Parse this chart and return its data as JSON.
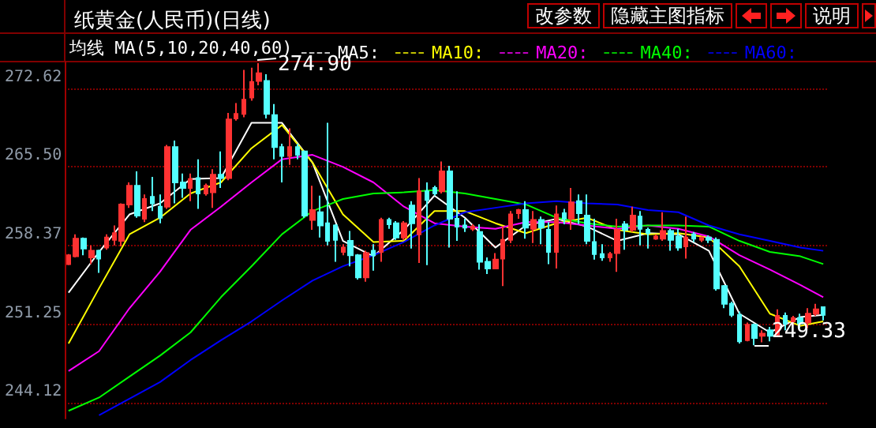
{
  "chart_data": {
    "type": "candlestick",
    "title": "纸黄金(人民币)(日线)",
    "legend_title": "均线 MA(5,10,20,40,60)",
    "annotations": [
      "改参数",
      "隐藏主图指标",
      "说明",
      "274.90",
      "249.33"
    ],
    "categories": [
      null,
      null,
      null,
      null,
      null,
      null,
      null,
      null,
      null,
      null,
      null,
      null,
      null,
      null,
      null,
      null,
      null,
      null,
      null,
      null,
      null,
      null,
      null,
      null,
      null,
      null,
      null,
      null,
      null,
      null,
      null,
      null,
      null,
      null,
      null,
      null,
      null,
      null,
      null,
      null,
      null,
      null,
      null,
      null,
      null,
      null,
      null,
      null,
      null,
      null,
      null,
      null,
      null,
      null,
      null,
      null,
      null,
      null,
      null,
      null,
      null,
      null,
      null,
      null,
      null,
      null,
      null,
      null,
      null,
      null,
      null,
      null,
      null,
      null,
      null,
      null,
      null,
      null,
      null,
      null,
      null,
      null,
      null,
      null,
      null,
      null,
      null,
      null,
      null,
      null,
      null,
      null,
      null,
      null,
      null,
      null,
      null,
      null,
      null,
      null
    ],
    "ohlc": [
      [
        256.7,
        257.6,
        256.6,
        257.5
      ],
      [
        257.4,
        259.4,
        257.3,
        259.0
      ],
      [
        259.0,
        259.1,
        257.5,
        258.1
      ],
      [
        257.3,
        258.4,
        256.7,
        257.9
      ],
      [
        257.9,
        258.0,
        255.9,
        257.2
      ],
      [
        258.2,
        259.4,
        258.0,
        259.1
      ],
      [
        258.9,
        260.2,
        258.4,
        259.5
      ],
      [
        258.8,
        262.2,
        258.3,
        262.1
      ],
      [
        262.1,
        264.1,
        261.8,
        263.8
      ],
      [
        263.8,
        265.1,
        260.9,
        261.1
      ],
      [
        260.8,
        263.0,
        260.5,
        262.6
      ],
      [
        262.8,
        264.6,
        261.5,
        262.2
      ],
      [
        261.9,
        263.0,
        260.4,
        260.9
      ],
      [
        261.9,
        267.5,
        261.7,
        267.3
      ],
      [
        267.3,
        267.9,
        262.2,
        264.1
      ],
      [
        264.1,
        264.9,
        262.7,
        263.6
      ],
      [
        263.6,
        264.9,
        262.4,
        264.4
      ],
      [
        264.5,
        266.2,
        261.7,
        263.1
      ],
      [
        263.1,
        264.0,
        262.9,
        263.8
      ],
      [
        263.2,
        265.3,
        261.8,
        264.8
      ],
      [
        264.8,
        266.9,
        263.6,
        264.5
      ],
      [
        264.5,
        270.4,
        264.3,
        269.8
      ],
      [
        269.9,
        271.3,
        269.7,
        270.3
      ],
      [
        270.3,
        274.3,
        270.0,
        271.6
      ],
      [
        271.8,
        274.5,
        271.5,
        273.2
      ],
      [
        273.3,
        274.9,
        272.9,
        274.0
      ],
      [
        273.3,
        273.9,
        269.9,
        270.3
      ],
      [
        270.2,
        271.2,
        266.2,
        267.3
      ],
      [
        267.3,
        267.6,
        264.1,
        266.5
      ],
      [
        266.5,
        269.0,
        265.7,
        267.3
      ],
      [
        267.3,
        267.6,
        266.2,
        266.6
      ],
      [
        266.9,
        267.0,
        260.9,
        261.1
      ],
      [
        260.7,
        263.8,
        259.8,
        261.6
      ],
      [
        261.4,
        262.9,
        259.1,
        260.2
      ],
      [
        260.4,
        269.5,
        258.4,
        258.8
      ],
      [
        260.2,
        260.3,
        256.9,
        258.9
      ],
      [
        257.8,
        258.5,
        257.5,
        258.2
      ],
      [
        258.8,
        259.7,
        256.5,
        257.5
      ],
      [
        257.5,
        257.6,
        255.3,
        255.5
      ],
      [
        255.5,
        257.9,
        255.1,
        257.7
      ],
      [
        257.9,
        258.5,
        256.1,
        257.5
      ],
      [
        257.8,
        260.9,
        256.9,
        260.7
      ],
      [
        260.7,
        260.9,
        259.9,
        260.3
      ],
      [
        260.4,
        260.6,
        258.9,
        259.1
      ],
      [
        259.1,
        260.6,
        258.9,
        260.4
      ],
      [
        262.0,
        262.4,
        258.1,
        260.4
      ],
      [
        259.4,
        264.5,
        256.8,
        263.3
      ],
      [
        263.3,
        264.1,
        256.6,
        262.5
      ],
      [
        263.6,
        263.8,
        262.9,
        263.1
      ],
      [
        263.3,
        266.0,
        263.1,
        265.1
      ],
      [
        265.1,
        265.6,
        258.2,
        260.8
      ],
      [
        260.8,
        263.3,
        258.8,
        260.1
      ],
      [
        260.2,
        260.8,
        259.6,
        260.0
      ],
      [
        259.9,
        260.3,
        259.7,
        260.1
      ],
      [
        259.6,
        260.3,
        256.2,
        256.9
      ],
      [
        256.9,
        257.3,
        255.8,
        256.3
      ],
      [
        256.3,
        257.7,
        256.3,
        257.1
      ],
      [
        257.2,
        260.1,
        254.7,
        258.9
      ],
      [
        258.9,
        261.5,
        258.6,
        261.2
      ],
      [
        261.3,
        261.7,
        260.8,
        261.6
      ],
      [
        261.6,
        262.4,
        259.0,
        260.0
      ],
      [
        259.9,
        261.5,
        258.6,
        260.7
      ],
      [
        260.7,
        261.0,
        258.5,
        260.0
      ],
      [
        259.8,
        260.5,
        256.7,
        257.8
      ],
      [
        257.8,
        262.0,
        256.3,
        261.2
      ],
      [
        261.3,
        261.7,
        260.3,
        260.8
      ],
      [
        260.8,
        263.6,
        259.8,
        262.3
      ],
      [
        262.4,
        263.0,
        260.3,
        261.3
      ],
      [
        261.1,
        263.0,
        258.5,
        258.8
      ],
      [
        258.7,
        260.8,
        257.1,
        257.6
      ],
      [
        257.6,
        258.5,
        257.0,
        257.3
      ],
      [
        257.3,
        257.8,
        256.9,
        257.6
      ],
      [
        257.7,
        260.8,
        256.0,
        259.8
      ],
      [
        260.3,
        260.6,
        258.0,
        259.8
      ],
      [
        259.8,
        261.9,
        259.6,
        261.1
      ],
      [
        261.0,
        261.5,
        258.4,
        259.9
      ],
      [
        259.8,
        260.0,
        258.1,
        259.5
      ],
      [
        259.0,
        259.4,
        258.9,
        259.2
      ],
      [
        259.0,
        261.4,
        258.8,
        259.7
      ],
      [
        259.7,
        259.9,
        257.9,
        258.9
      ],
      [
        259.2,
        259.9,
        257.9,
        258.2
      ],
      [
        258.3,
        261.0,
        257.2,
        259.1
      ],
      [
        259.4,
        259.6,
        258.7,
        259.0
      ],
      [
        258.9,
        259.2,
        258.7,
        259.1
      ],
      [
        259.1,
        259.3,
        258.6,
        258.9
      ],
      [
        258.9,
        259.1,
        254.3,
        254.5
      ],
      [
        254.7,
        254.8,
        252.7,
        253.1
      ],
      [
        253.1,
        253.3,
        251.9,
        252.1
      ],
      [
        252.1,
        252.4,
        249.5,
        249.7
      ],
      [
        249.8,
        251.4,
        249.7,
        251.2
      ],
      [
        251.2,
        251.3,
        249.33,
        250.0
      ],
      [
        250.2,
        250.7,
        249.6,
        250.4
      ],
      [
        250.7,
        251.0,
        249.7,
        250.2
      ],
      [
        250.3,
        252.6,
        250.1,
        252.0
      ],
      [
        252.0,
        252.3,
        250.7,
        251.3
      ],
      [
        251.5,
        252.0,
        251.3,
        251.8
      ],
      [
        251.8,
        252.2,
        250.9,
        251.3
      ],
      [
        251.4,
        252.7,
        250.9,
        252.2
      ],
      [
        252.2,
        253.1,
        252.0,
        252.6
      ],
      [
        252.8,
        252.8,
        251.6,
        252.1
      ]
    ],
    "colors": [
      "#ff3232",
      "#ff3232",
      "#54ffff",
      "#ff3232",
      "#54ffff",
      "#ff3232",
      "#ff3232",
      "#ff3232",
      "#ff3232",
      "#54ffff",
      "#ff3232",
      "#54ffff",
      "#54ffff",
      "#ff3232",
      "#54ffff",
      "#54ffff",
      "#ff3232",
      "#54ffff",
      "#ff3232",
      "#ff3232",
      "#54ffff",
      "#ff3232",
      "#ff3232",
      "#ff3232",
      "#ff3232",
      "#ff3232",
      "#54ffff",
      "#54ffff",
      "#54ffff",
      "#ff3232",
      "#54ffff",
      "#54ffff",
      "#ff3232",
      "#54ffff",
      "#54ffff",
      "#54ffff",
      "#ff3232",
      "#54ffff",
      "#54ffff",
      "#ff3232",
      "#54ffff",
      "#ff3232",
      "#54ffff",
      "#54ffff",
      "#ff3232",
      "#54ffff",
      "#ff3232",
      "#54ffff",
      "#54ffff",
      "#ff3232",
      "#54ffff",
      "#54ffff",
      "#54ffff",
      "#ff3232",
      "#54ffff",
      "#54ffff",
      "#ff3232",
      "#ff3232",
      "#ff3232",
      "#ff3232",
      "#54ffff",
      "#ff3232",
      "#54ffff",
      "#54ffff",
      "#ff3232",
      "#54ffff",
      "#ff3232",
      "#54ffff",
      "#54ffff",
      "#54ffff",
      "#54ffff",
      "#ff3232",
      "#ff3232",
      "#54ffff",
      "#ff3232",
      "#54ffff",
      "#54ffff",
      "#ff3232",
      "#ff3232",
      "#54ffff",
      "#54ffff",
      "#ff3232",
      "#54ffff",
      "#ff3232",
      "#54ffff",
      "#54ffff",
      "#54ffff",
      "#54ffff",
      "#54ffff",
      "#ff3232",
      "#54ffff",
      "#ff3232",
      "#54ffff",
      "#ff3232",
      "#54ffff",
      "#ff3232",
      "#54ffff",
      "#ff3232",
      "#ff3232",
      "#54ffff"
    ],
    "series": [
      {
        "type": "line",
        "name": "MA5:",
        "color": "#ffffff",
        "values": [
          254.1,
          null,
          null,
          null,
          257.8,
          null,
          null,
          null,
          261.2,
          null,
          null,
          null,
          262.2,
          null,
          null,
          null,
          264.4,
          null,
          null,
          null,
          264.5,
          null,
          null,
          null,
          269.5,
          null,
          null,
          null,
          269.5,
          null,
          null,
          null,
          265.9,
          null,
          null,
          null,
          258.8,
          null,
          null,
          null,
          257.4,
          null,
          null,
          null,
          259.8,
          null,
          null,
          null,
          262.9,
          null,
          null,
          null,
          260.9,
          null,
          null,
          null,
          258.2,
          null,
          null,
          null,
          260.2,
          null,
          null,
          null,
          260.8,
          null,
          null,
          null,
          260.1,
          null,
          null,
          null,
          258.8,
          null,
          null,
          null,
          259.5,
          null,
          null,
          null,
          259.4,
          null,
          null,
          null,
          257.9,
          null,
          null,
          null,
          252.2,
          null,
          null,
          null,
          250.5,
          null,
          null,
          null,
          251.9,
          null,
          null,
          252.1
        ]
      },
      {
        "type": "line",
        "name": "MA10:",
        "color": "#ffff00",
        "values": [
          249.5,
          null,
          null,
          null,
          254.5,
          null,
          null,
          null,
          259.4,
          null,
          null,
          null,
          260.9,
          null,
          null,
          null,
          263.1,
          null,
          null,
          null,
          264.1,
          null,
          null,
          null,
          267.2,
          null,
          null,
          null,
          269.3,
          null,
          null,
          null,
          265.9,
          null,
          null,
          null,
          261.2,
          null,
          null,
          null,
          258.7,
          null,
          null,
          null,
          258.8,
          null,
          null,
          null,
          261.5,
          null,
          null,
          null,
          261.5,
          null,
          null,
          null,
          260.4,
          null,
          null,
          null,
          259.5,
          null,
          null,
          null,
          260.4,
          null,
          null,
          null,
          260.9,
          null,
          null,
          null,
          259.8,
          null,
          null,
          null,
          259.4,
          null,
          null,
          null,
          259.5,
          null,
          null,
          null,
          259.1,
          null,
          null,
          null,
          256.5,
          null,
          null,
          null,
          252.2,
          null,
          null,
          null,
          251.1,
          null,
          null,
          251.5
        ]
      },
      {
        "type": "line",
        "name": "MA20:",
        "color": "#ff00ff",
        "values": [
          247.0,
          null,
          null,
          null,
          248.8,
          null,
          null,
          null,
          252.7,
          null,
          null,
          null,
          256.0,
          null,
          null,
          null,
          259.8,
          null,
          null,
          null,
          261.9,
          null,
          null,
          null,
          264.1,
          null,
          null,
          null,
          266.2,
          null,
          null,
          null,
          266.6,
          null,
          null,
          null,
          265.5,
          null,
          null,
          null,
          264.1,
          null,
          null,
          null,
          261.9,
          null,
          null,
          null,
          260.4,
          null,
          null,
          null,
          260.1,
          null,
          null,
          null,
          259.9,
          null,
          null,
          null,
          260.5,
          null,
          null,
          null,
          260.5,
          null,
          null,
          null,
          260.2,
          null,
          null,
          null,
          259.9,
          null,
          null,
          null,
          260.2,
          null,
          null,
          null,
          259.9,
          null,
          null,
          null,
          259.2,
          null,
          null,
          null,
          257.5,
          null,
          null,
          null,
          256.2,
          null,
          null,
          null,
          254.8,
          null,
          null,
          253.7
        ]
      },
      {
        "type": "line",
        "name": "MA40:",
        "color": "#00ff00",
        "values": [
          243.4,
          null,
          null,
          null,
          244.6,
          null,
          null,
          null,
          246.5,
          null,
          null,
          null,
          248.4,
          null,
          null,
          null,
          250.5,
          null,
          null,
          null,
          253.7,
          null,
          null,
          null,
          256.5,
          null,
          null,
          null,
          259.4,
          null,
          null,
          null,
          261.5,
          null,
          null,
          null,
          262.6,
          null,
          null,
          null,
          263.1,
          null,
          null,
          null,
          263.2,
          null,
          null,
          null,
          263.4,
          null,
          null,
          null,
          263.1,
          null,
          null,
          null,
          262.6,
          null,
          null,
          null,
          262.1,
          null,
          null,
          null,
          260.9,
          null,
          null,
          null,
          260.4,
          null,
          null,
          null,
          260.1,
          null,
          null,
          null,
          260.2,
          null,
          null,
          null,
          260.2,
          null,
          null,
          null,
          260.1,
          null,
          null,
          null,
          258.8,
          null,
          null,
          null,
          257.8,
          null,
          null,
          null,
          257.4,
          null,
          null,
          256.7
        ]
      },
      {
        "type": "line",
        "name": "MA60:",
        "color": "#0000ff",
        "values": [
          null,
          null,
          null,
          null,
          243.0,
          null,
          null,
          null,
          244.5,
          null,
          null,
          null,
          246.0,
          null,
          null,
          null,
          248.0,
          null,
          null,
          null,
          249.8,
          null,
          null,
          null,
          251.5,
          null,
          null,
          null,
          253.4,
          null,
          null,
          null,
          255.2,
          null,
          null,
          null,
          256.5,
          null,
          null,
          null,
          257.5,
          null,
          null,
          null,
          258.7,
          null,
          null,
          null,
          260.2,
          null,
          null,
          null,
          261.4,
          null,
          null,
          null,
          261.8,
          null,
          null,
          null,
          262.2,
          null,
          null,
          null,
          262.4,
          null,
          null,
          null,
          262.2,
          null,
          null,
          null,
          262.1,
          null,
          null,
          null,
          261.6,
          null,
          null,
          null,
          261.4,
          null,
          null,
          null,
          260.2,
          null,
          null,
          null,
          259.4,
          null,
          null,
          null,
          258.8,
          null,
          null,
          null,
          258.2,
          null,
          null,
          257.9
        ]
      }
    ],
    "ylim": [
      242.7,
      275.05
    ],
    "yticks": [
      244.12,
      251.25,
      258.37,
      {
        "value": 265.5,
        "label": "265.50"
      },
      272.62
    ],
    "tick_labels": "y",
    "grid": "y",
    "legend": "top",
    "marker": "none",
    "line_style": "solid"
  }
}
